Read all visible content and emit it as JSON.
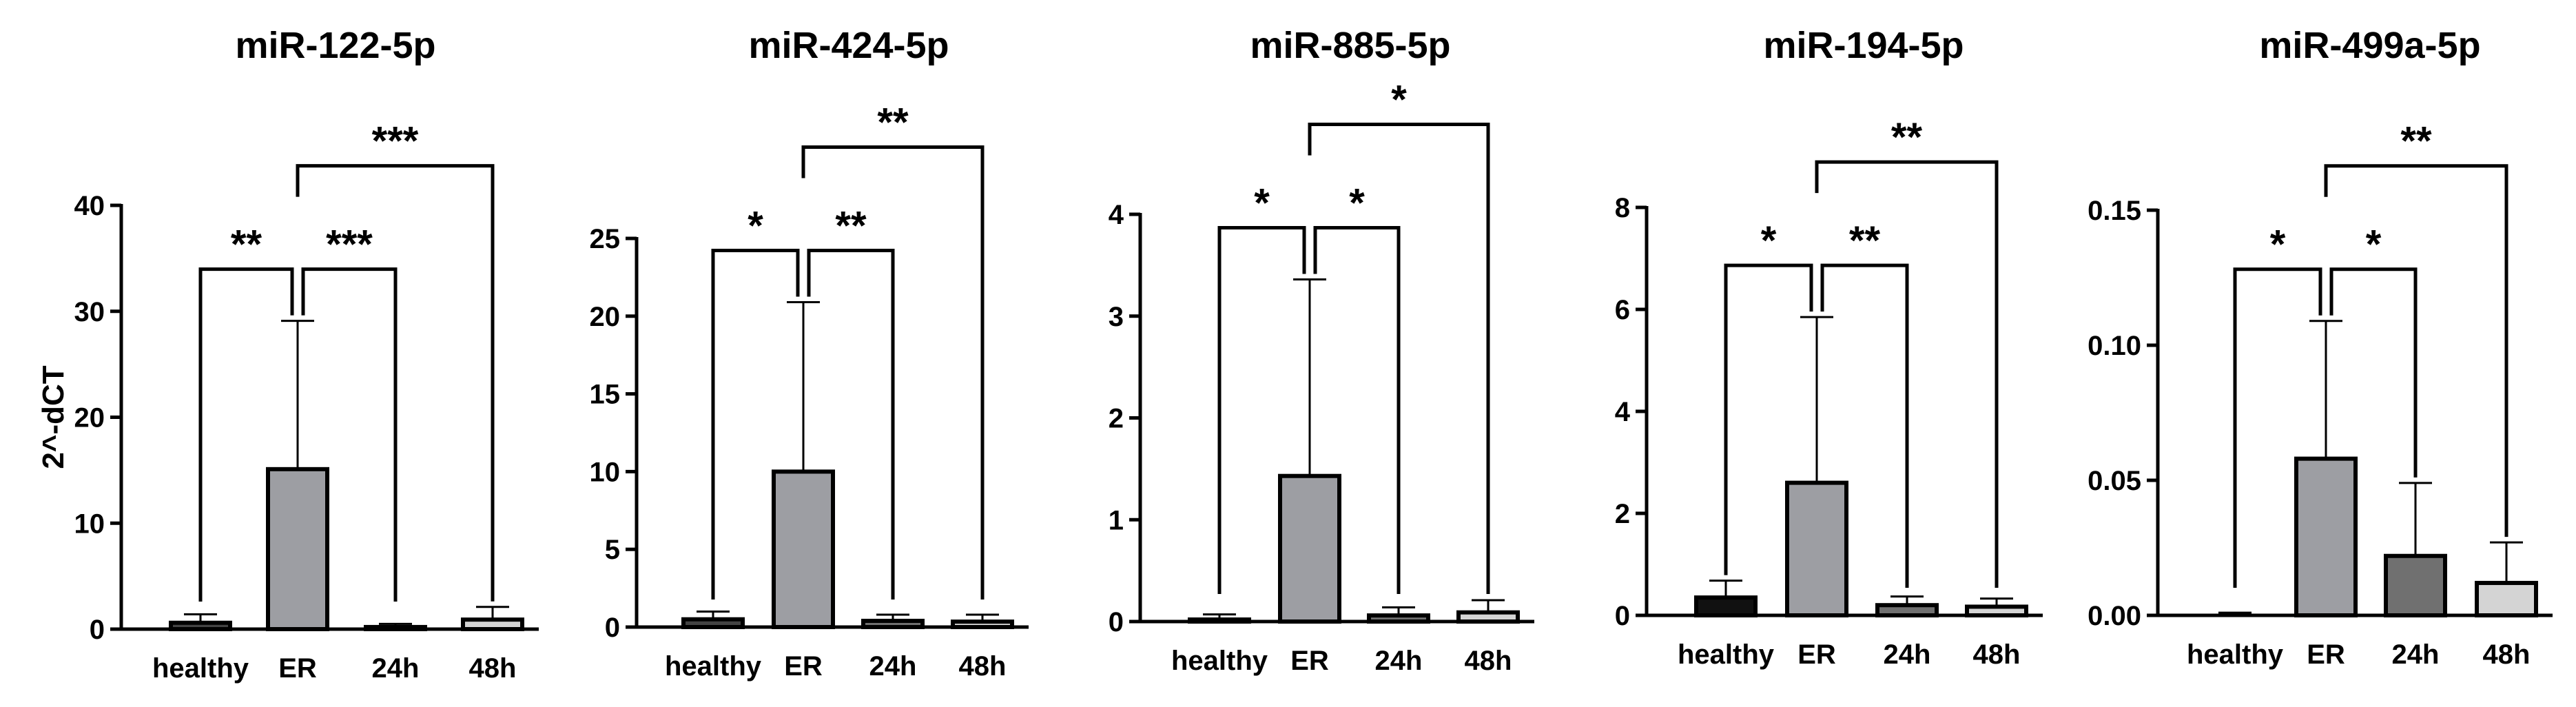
{
  "chart_data": [
    {
      "type": "bar",
      "title": "miR-122-5p",
      "ylabel": "2^-dCT",
      "categories": [
        "healthy",
        "ER",
        "24h",
        "48h"
      ],
      "values": [
        0.6,
        15.1,
        0.2,
        0.9
      ],
      "errors": [
        0.8,
        14.0,
        0.3,
        1.2
      ],
      "colors": [
        "#444444",
        "#9d9ea3",
        "#707070",
        "#d4d4d4"
      ],
      "ylim": [
        0,
        40
      ],
      "yticks": [
        "0",
        "10",
        "20",
        "30",
        "40"
      ],
      "significance": [
        {
          "from": "healthy",
          "to": "ER",
          "label": "**"
        },
        {
          "from": "ER",
          "to": "24h",
          "label": "***"
        },
        {
          "from": "ER",
          "to": "48h",
          "label": "***"
        }
      ]
    },
    {
      "type": "bar",
      "title": "miR-424-5p",
      "categories": [
        "healthy",
        "ER",
        "24h",
        "48h"
      ],
      "values": [
        0.5,
        10.0,
        0.4,
        0.35
      ],
      "errors": [
        0.5,
        10.9,
        0.4,
        0.45
      ],
      "colors": [
        "#444444",
        "#9d9ea3",
        "#707070",
        "#d4d4d4"
      ],
      "ylim": [
        0,
        25
      ],
      "yticks": [
        "0",
        "5",
        "10",
        "15",
        "20",
        "25"
      ],
      "significance": [
        {
          "from": "healthy",
          "to": "ER",
          "label": "*"
        },
        {
          "from": "ER",
          "to": "24h",
          "label": "**"
        },
        {
          "from": "ER",
          "to": "48h",
          "label": "**"
        }
      ]
    },
    {
      "type": "bar",
      "title": "miR-885-5p",
      "categories": [
        "healthy",
        "ER",
        "24h",
        "48h"
      ],
      "values": [
        0.02,
        1.43,
        0.06,
        0.09
      ],
      "errors": [
        0.05,
        1.93,
        0.08,
        0.12
      ],
      "colors": [
        "#444444",
        "#9d9ea3",
        "#707070",
        "#d4d4d4"
      ],
      "ylim": [
        0,
        4
      ],
      "yticks": [
        "0",
        "1",
        "2",
        "3",
        "4"
      ],
      "significance": [
        {
          "from": "healthy",
          "to": "ER",
          "label": "*"
        },
        {
          "from": "ER",
          "to": "24h",
          "label": "*"
        },
        {
          "from": "ER",
          "to": "48h",
          "label": "*"
        }
      ]
    },
    {
      "type": "bar",
      "title": "miR-194-5p",
      "categories": [
        "healthy",
        "ER",
        "24h",
        "48h"
      ],
      "values": [
        0.35,
        2.6,
        0.2,
        0.17
      ],
      "errors": [
        0.33,
        3.25,
        0.17,
        0.16
      ],
      "colors": [
        "#111111",
        "#9d9ea3",
        "#707070",
        "#d4d4d4"
      ],
      "ylim": [
        0,
        8
      ],
      "yticks": [
        "0",
        "2",
        "4",
        "6",
        "8"
      ],
      "significance": [
        {
          "from": "healthy",
          "to": "ER",
          "label": "*"
        },
        {
          "from": "ER",
          "to": "24h",
          "label": "**"
        },
        {
          "from": "ER",
          "to": "48h",
          "label": "**"
        }
      ]
    },
    {
      "type": "bar",
      "title": "miR-499a-5p",
      "categories": [
        "healthy",
        "ER",
        "24h",
        "48h"
      ],
      "values": [
        0.0,
        0.058,
        0.022,
        0.012
      ],
      "errors": [
        0.001,
        0.051,
        0.027,
        0.015
      ],
      "colors": [
        "#444444",
        "#9d9ea3",
        "#707070",
        "#d4d4d4"
      ],
      "ylim": [
        0,
        0.15
      ],
      "yticks": [
        "0.00",
        "0.05",
        "0.10",
        "0.15"
      ],
      "significance": [
        {
          "from": "healthy",
          "to": "ER",
          "label": "*"
        },
        {
          "from": "ER",
          "to": "24h",
          "label": "*"
        },
        {
          "from": "ER",
          "to": "48h",
          "label": "**"
        }
      ]
    }
  ]
}
